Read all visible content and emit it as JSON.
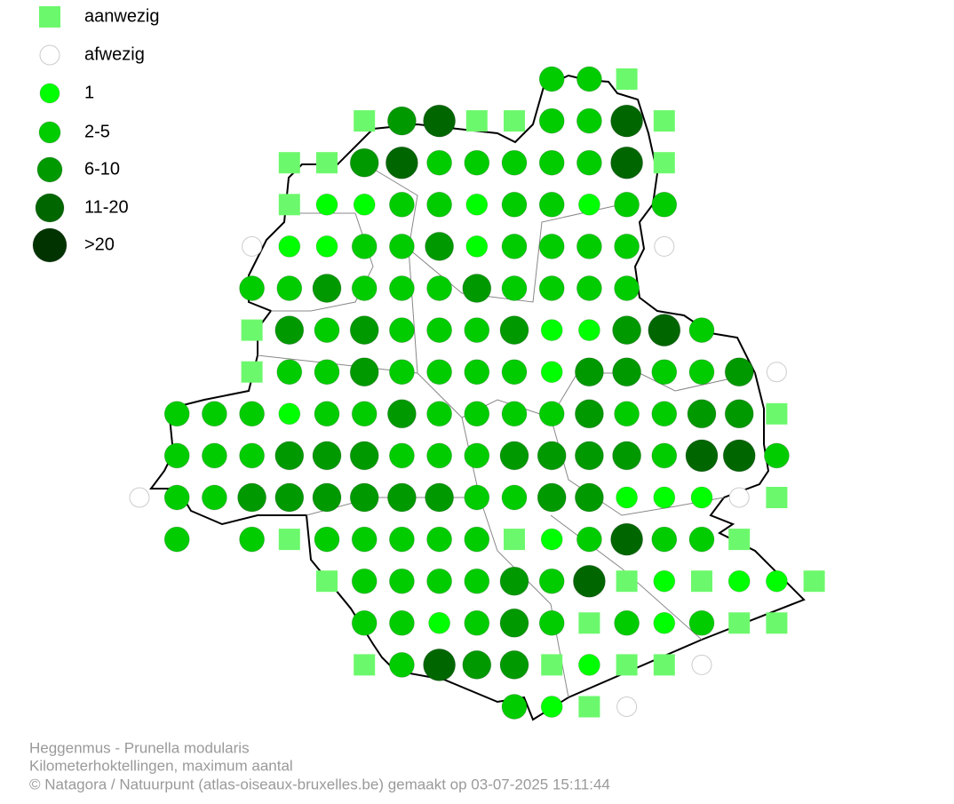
{
  "legend": {
    "items": [
      {
        "label": "aanwezig",
        "color": "#6cf86c"
      },
      {
        "label": "afwezig",
        "color": "#ffffff"
      },
      {
        "label": "1",
        "color": "#00ff00"
      },
      {
        "label": "2-5",
        "color": "#00cc00"
      },
      {
        "label": "6-10",
        "color": "#009900"
      },
      {
        "label": "11-20",
        "color": "#006600"
      },
      {
        "label": ">20",
        "color": "#003300"
      }
    ]
  },
  "footer": [
    "Heggenmus - Prunella modularis",
    "Kilometerhoktellingen, maximum aantal",
    "© Natagora / Natuurpunt (atlas-oiseaux-bruxelles.be) gemaakt op 03-07-2025 15:11:44"
  ]
}
